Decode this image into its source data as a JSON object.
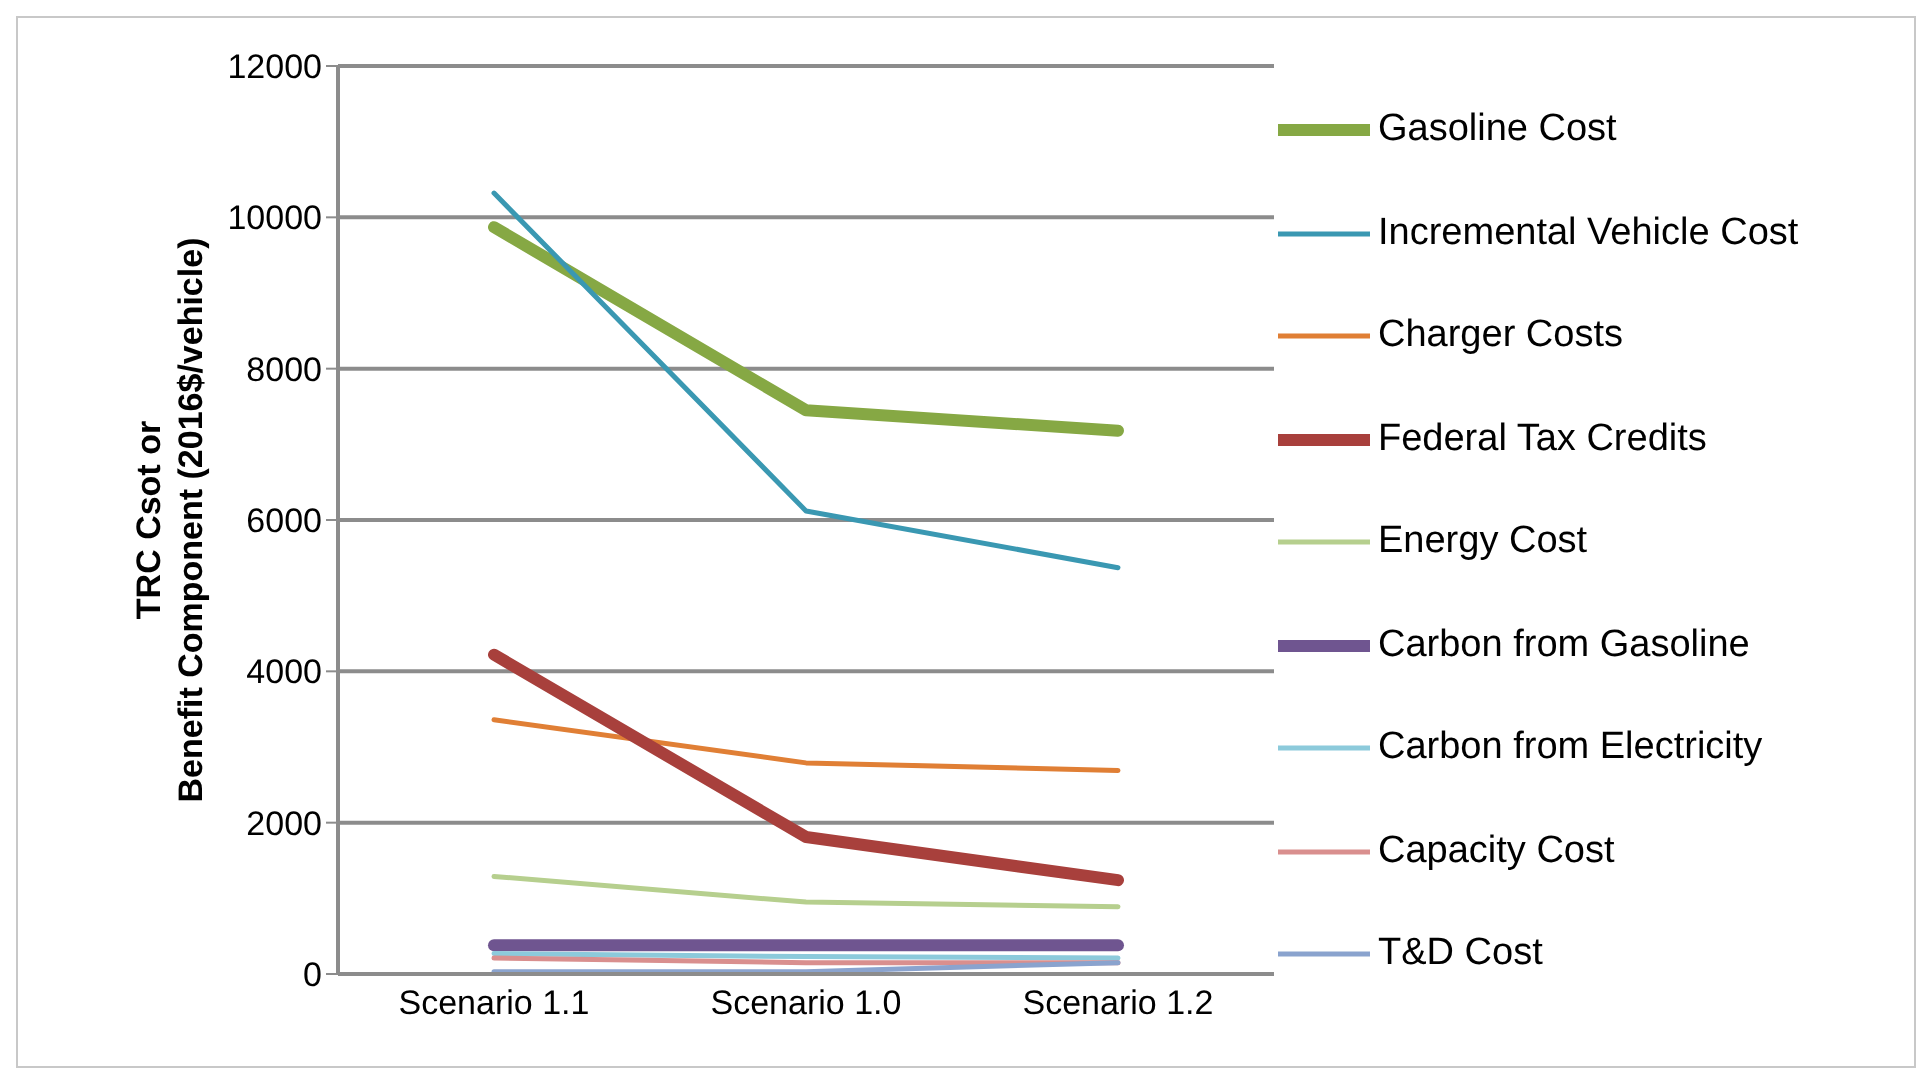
{
  "chart_data": {
    "type": "line",
    "ylabel": "TRC Csot or Benefit Component (2016$/vehicle)",
    "categories": [
      "Scenario 1.1",
      "Scenario 1.0",
      "Scenario 1.2"
    ],
    "series": [
      {
        "name": "Gasoline Cost",
        "color": "#86a844",
        "values": [
          9870,
          7450,
          7180
        ]
      },
      {
        "name": "Incremental Vehicle Cost",
        "color": "#3a98b2",
        "values": [
          10320,
          6120,
          5370
        ]
      },
      {
        "name": "Charger Costs",
        "color": "#e07f35",
        "values": [
          3360,
          2790,
          2690
        ]
      },
      {
        "name": "Federal Tax Credits",
        "color": "#a8403c",
        "values": [
          4220,
          1810,
          1240
        ]
      },
      {
        "name": "Energy Cost",
        "color": "#b6cf8e",
        "values": [
          1290,
          950,
          890
        ]
      },
      {
        "name": "Carbon from Gasoline",
        "color": "#6f5590",
        "values": [
          380,
          380,
          380
        ]
      },
      {
        "name": "Carbon from Electricity",
        "color": "#8ccadb",
        "values": [
          270,
          230,
          210
        ]
      },
      {
        "name": "Capacity Cost",
        "color": "#d98f8e",
        "values": [
          210,
          150,
          150
        ]
      },
      {
        "name": "T&D Cost",
        "color": "#8aa3ce",
        "values": [
          30,
          30,
          150
        ]
      }
    ],
    "ylim": [
      0,
      12000
    ],
    "yticks": [
      0,
      2000,
      4000,
      6000,
      8000,
      10000,
      12000
    ],
    "grid": "y",
    "legend": "right",
    "marker": "none",
    "line_style": "solid"
  }
}
